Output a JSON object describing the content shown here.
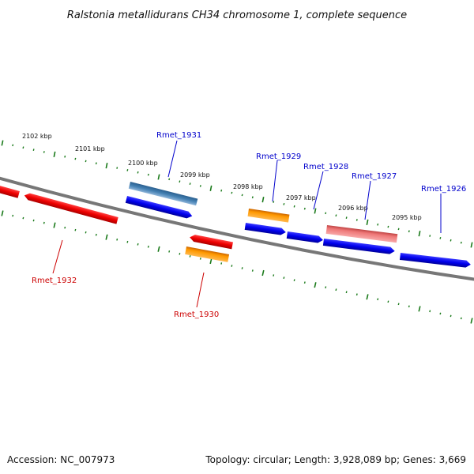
{
  "title": "Ralstonia metallidurans CH34 chromosome 1, complete sequence",
  "footer": {
    "accession": "Accession: NC_007973",
    "summary": "Topology: circular; Length: 3,928,089 bp; Genes: 3,669"
  },
  "ruler": {
    "labels": [
      "2102 kbp",
      "2101 kbp",
      "2100 kbp",
      "2099 kbp",
      "2098 kbp",
      "2097 kbp",
      "2096 kbp",
      "2095 kbp"
    ]
  },
  "genes": [
    {
      "locus": "Rmet_1931"
    },
    {
      "locus": "Rmet_1929"
    },
    {
      "locus": "Rmet_1928"
    },
    {
      "locus": "Rmet_1927"
    },
    {
      "locus": "Rmet_1926"
    },
    {
      "locus": "Rmet_1932"
    },
    {
      "locus": "Rmet_1930"
    }
  ],
  "colors": {
    "forward_gene": "#0000ee",
    "reverse_gene": "#ee0000",
    "orange_gene": "#ff9900",
    "steel_gene": "#4682b4",
    "pink_gene": "#ee7777",
    "backbone": "#777777",
    "tick": "#1a7a1a",
    "forward_label": "#0000cc",
    "reverse_label": "#cc0000"
  }
}
